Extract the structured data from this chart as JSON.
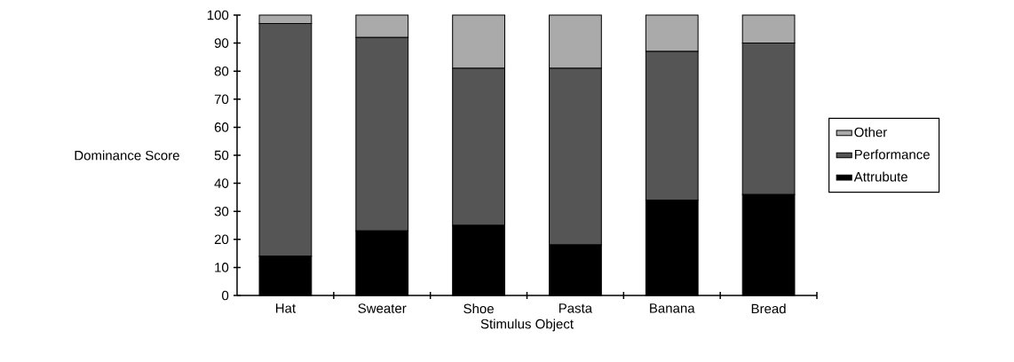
{
  "chart_data": {
    "type": "bar",
    "stacked": true,
    "xlabel": "Stimulus Object",
    "ylabel": "Dominance Score",
    "categories": [
      "Hat",
      "Sweater",
      "Shoe",
      "Pasta",
      "Banana",
      "Bread"
    ],
    "series": [
      {
        "name": "Attrubute",
        "color": "#000000",
        "values": [
          14,
          23,
          25,
          18,
          34,
          36
        ]
      },
      {
        "name": "Performance",
        "color": "#555555",
        "values": [
          83,
          69,
          56,
          63,
          53,
          54
        ]
      },
      {
        "name": "Other",
        "color": "#aaaaaa",
        "values": [
          3,
          8,
          19,
          19,
          13,
          10
        ]
      }
    ],
    "ylim": [
      0,
      100
    ],
    "yticks": [
      0,
      10,
      20,
      30,
      40,
      50,
      60,
      70,
      80,
      90,
      100
    ],
    "legend": "right"
  }
}
